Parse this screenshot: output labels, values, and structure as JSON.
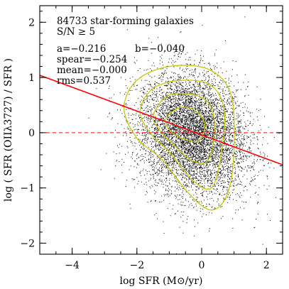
{
  "chart_data": {
    "type": "scatter",
    "title": "84733 star-forming galaxies",
    "subtitle": "S/N ≥ 5",
    "xlabel": "log SFR (M⊙/yr)",
    "ylabel": "log ( SFR (OIIλ3727) / SFR )",
    "xlim": [
      -5.0,
      2.5
    ],
    "ylim": [
      -2.2,
      2.3
    ],
    "xticks": [
      -4,
      -2,
      0,
      2
    ],
    "xtick_labels": [
      "−4",
      "−2",
      "0",
      "2"
    ],
    "yticks": [
      -2,
      -1,
      0,
      1,
      2
    ],
    "ytick_labels": [
      "−2",
      "−1",
      "0",
      "1",
      "2"
    ],
    "grid": false,
    "stats": {
      "a_label": "a=−0.216",
      "b_label": "b=−0.040",
      "spear_label": "spear=−0.254",
      "mean_label": "mean=−0.000",
      "rms_label": "rms=0.537"
    },
    "fit_line": {
      "slope": -0.216,
      "intercept": -0.04,
      "color": "#ff0000"
    },
    "zero_line": {
      "y": 0,
      "color": "#ff0000",
      "style": "dashed"
    },
    "point_cloud": {
      "color": "#000000",
      "n_points": 84733,
      "x_center": -0.3,
      "y_center": 0.0,
      "x_spread": 0.85,
      "y_spread": 0.55
    },
    "contours": {
      "color": "#c8c800",
      "levels": [
        {
          "label": "outer",
          "points": [
            [
              -2.4,
              0.45
            ],
            [
              -2.0,
              0.95
            ],
            [
              -1.0,
              1.2
            ],
            [
              0.2,
              1.15
            ],
            [
              0.9,
              0.7
            ],
            [
              1.0,
              -0.3
            ],
            [
              0.8,
              -1.1
            ],
            [
              0.3,
              -1.4
            ],
            [
              -0.4,
              -1.1
            ],
            [
              -1.2,
              -0.5
            ],
            [
              -2.0,
              -0.1
            ]
          ]
        },
        {
          "label": "mid",
          "points": [
            [
              -1.9,
              0.4
            ],
            [
              -1.5,
              0.8
            ],
            [
              -0.6,
              0.95
            ],
            [
              0.3,
              0.85
            ],
            [
              0.7,
              0.4
            ],
            [
              0.6,
              -0.4
            ],
            [
              0.3,
              -1.0
            ],
            [
              -0.3,
              -0.85
            ],
            [
              -1.0,
              -0.35
            ],
            [
              -1.6,
              0.0
            ]
          ]
        },
        {
          "label": "inner",
          "points": [
            [
              -1.5,
              0.3
            ],
            [
              -1.1,
              0.65
            ],
            [
              -0.4,
              0.7
            ],
            [
              0.2,
              0.55
            ],
            [
              0.4,
              0.1
            ],
            [
              0.2,
              -0.5
            ],
            [
              -0.3,
              -0.5
            ],
            [
              -0.9,
              -0.2
            ],
            [
              -1.3,
              0.05
            ]
          ]
        },
        {
          "label": "core",
          "points": [
            [
              -1.1,
              0.25
            ],
            [
              -0.7,
              0.45
            ],
            [
              -0.2,
              0.4
            ],
            [
              0.1,
              0.15
            ],
            [
              -0.1,
              -0.15
            ],
            [
              -0.6,
              -0.1
            ],
            [
              -1.0,
              0.05
            ]
          ]
        }
      ]
    }
  }
}
